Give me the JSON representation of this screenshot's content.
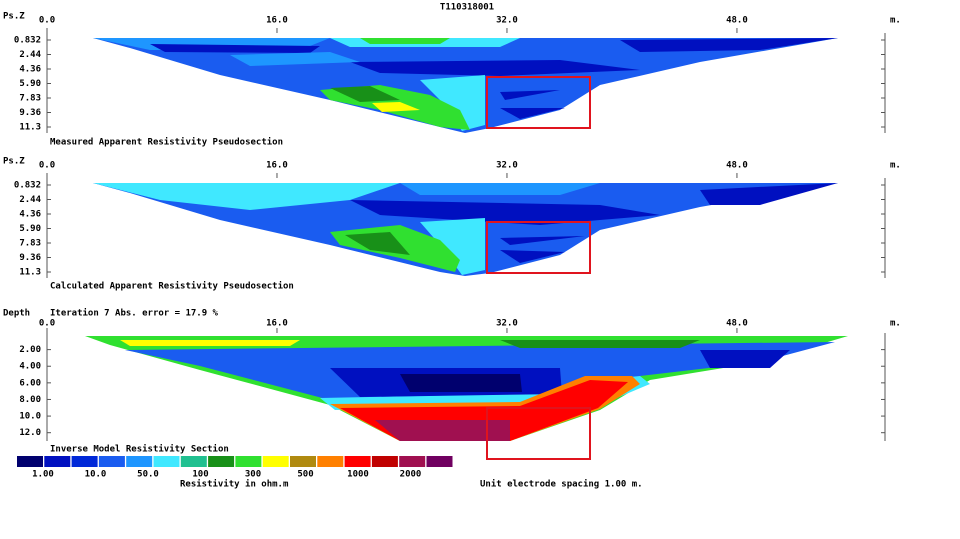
{
  "title": "T110318001",
  "chart_data": [
    {
      "type": "pseudosection",
      "y_label": "Ps.Z",
      "x_unit": "m.",
      "xlim": [
        0,
        58.3
      ],
      "xticks": [
        {
          "value": 0,
          "label": "0.0"
        },
        {
          "value": 16,
          "label": "16.0"
        },
        {
          "value": 32,
          "label": "32.0"
        },
        {
          "value": 48,
          "label": "48.0"
        }
      ],
      "yticks": [
        0.832,
        2.44,
        4.36,
        {
          "value": 5.9,
          "label": "5.90"
        },
        7.83,
        9.36,
        11.3
      ],
      "caption": "Measured Apparent Resistivity Pseudosection"
    },
    {
      "type": "pseudosection",
      "y_label": "Ps.Z",
      "x_unit": "m.",
      "xlim": [
        0,
        58.3
      ],
      "xticks": [
        {
          "value": 0,
          "label": "0.0"
        },
        {
          "value": 16,
          "label": "16.0"
        },
        {
          "value": 32,
          "label": "32.0"
        },
        {
          "value": 48,
          "label": "48.0"
        }
      ],
      "yticks": [
        0.832,
        2.44,
        4.36,
        {
          "value": 5.9,
          "label": "5.90"
        },
        7.83,
        9.36,
        11.3
      ],
      "caption": "Calculated Apparent Resistivity Pseudosection"
    },
    {
      "type": "section",
      "y_label": "Depth",
      "subtitle": "Iteration 7 Abs. error = 17.9 %",
      "x_unit": "m.",
      "xlim": [
        0,
        58.3
      ],
      "ylim": [
        0,
        13
      ],
      "xticks": [
        {
          "value": 0,
          "label": "0.0"
        },
        {
          "value": 16,
          "label": "16.0"
        },
        {
          "value": 32,
          "label": "32.0"
        },
        {
          "value": 48,
          "label": "48.0"
        }
      ],
      "yticks": [
        {
          "value": 2,
          "label": "2.00"
        },
        {
          "value": 4,
          "label": "4.00"
        },
        {
          "value": 6,
          "label": "6.00"
        },
        {
          "value": 8,
          "label": "8.00"
        },
        {
          "value": 10,
          "label": "10.0"
        },
        {
          "value": 12,
          "label": "12.0"
        }
      ],
      "caption": "Inverse Model Resistivity Section"
    }
  ],
  "legend": {
    "title": "Resistivity in ohm.m",
    "colors": [
      "#00006e",
      "#0010c0",
      "#0028d8",
      "#1a5cf0",
      "#1e96ff",
      "#40e8ff",
      "#20c090",
      "#189018",
      "#30e030",
      "#ffff00",
      "#b08a10",
      "#ff8000",
      "#ff0000",
      "#c00000",
      "#a01050",
      "#700060"
    ],
    "labels": [
      {
        "value": 1,
        "label": "1.00"
      },
      {
        "value": 10,
        "label": "10.0"
      },
      {
        "value": 50,
        "label": "50.0"
      },
      100,
      300,
      500,
      1000,
      2000
    ]
  },
  "note": "Unit electrode spacing 1.00 m."
}
